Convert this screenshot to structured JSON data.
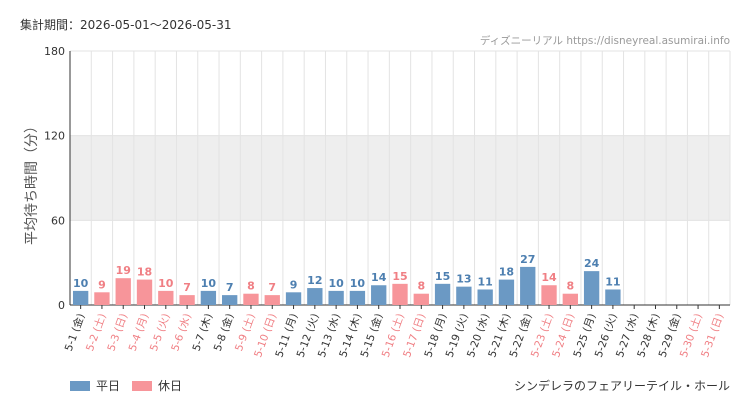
{
  "header": {
    "period": "集計期間：2026-05-01～2026-05-31",
    "source": "ディズニーリアル https://disneyreal.asumirai.info"
  },
  "footer": {
    "attraction": "シンデレラのフェアリーテイル・ホール"
  },
  "colors": {
    "weekday": "#6b99c4",
    "holiday": "#f7959a",
    "weekday_text": "#4d7fb0",
    "holiday_text": "#f07f84",
    "band": "#eeeeee",
    "grid": "#e3e3e3"
  },
  "chart_data": {
    "type": "bar",
    "ylabel": "平均待ち時間（分）",
    "ylim": [
      0,
      180
    ],
    "yticks": [
      0,
      60,
      120,
      180
    ],
    "shaded_band": [
      60,
      120
    ],
    "legend": [
      {
        "name": "平日",
        "type": "weekday"
      },
      {
        "name": "休日",
        "type": "holiday"
      }
    ],
    "legend_position": "bottom-left",
    "categories": [
      "5-1 (金)",
      "5-2 (土)",
      "5-3 (日)",
      "5-4 (月)",
      "5-5 (火)",
      "5-6 (水)",
      "5-7 (木)",
      "5-8 (金)",
      "5-9 (土)",
      "5-10 (日)",
      "5-11 (月)",
      "5-12 (火)",
      "5-13 (水)",
      "5-14 (木)",
      "5-15 (金)",
      "5-16 (土)",
      "5-17 (日)",
      "5-18 (月)",
      "5-19 (火)",
      "5-20 (水)",
      "5-21 (木)",
      "5-22 (金)",
      "5-23 (土)",
      "5-24 (日)",
      "5-25 (月)",
      "5-26 (火)",
      "5-27 (水)",
      "5-28 (木)",
      "5-29 (金)",
      "5-30 (土)",
      "5-31 (日)"
    ],
    "values": [
      10,
      9,
      19,
      18,
      10,
      7,
      10,
      7,
      8,
      7,
      9,
      12,
      10,
      10,
      14,
      15,
      8,
      15,
      13,
      11,
      18,
      27,
      14,
      8,
      24,
      11,
      null,
      null,
      null,
      null,
      null
    ],
    "day_type": [
      "weekday",
      "holiday",
      "holiday",
      "holiday",
      "holiday",
      "holiday",
      "weekday",
      "weekday",
      "holiday",
      "holiday",
      "weekday",
      "weekday",
      "weekday",
      "weekday",
      "weekday",
      "holiday",
      "holiday",
      "weekday",
      "weekday",
      "weekday",
      "weekday",
      "weekday",
      "holiday",
      "holiday",
      "weekday",
      "weekday",
      "weekday",
      "weekday",
      "weekday",
      "holiday",
      "holiday"
    ]
  }
}
